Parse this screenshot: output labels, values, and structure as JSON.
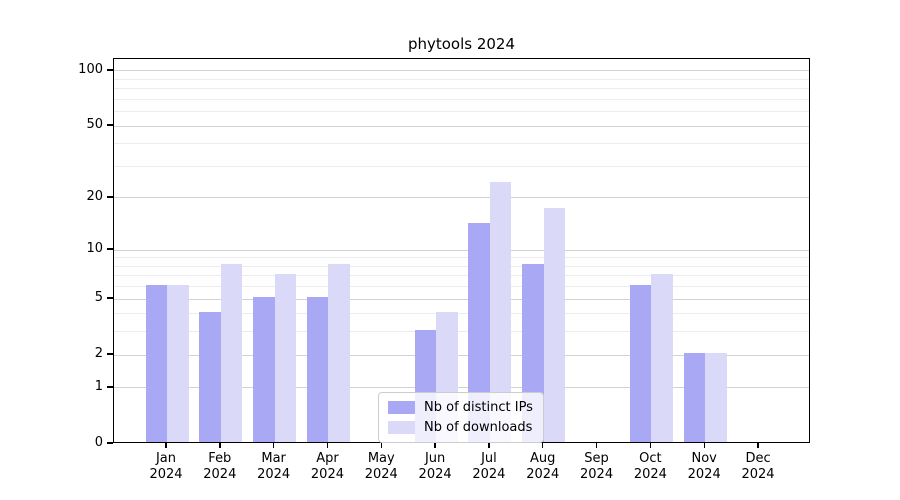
{
  "title": "phytools 2024",
  "legend": {
    "items": [
      {
        "label": "Nb of distinct IPs",
        "key": "ips"
      },
      {
        "label": "Nb of downloads",
        "key": "downloads"
      }
    ]
  },
  "colors": {
    "ips": "#a8a8f5",
    "downloads": "#dadaf8",
    "grid_major": "#d2d2d2",
    "grid_minor": "#ececec",
    "spine": "#000000",
    "legend_border": "#cccccc"
  },
  "y_axis": {
    "scale": "log1p",
    "ticks": [
      0,
      1,
      2,
      5,
      10,
      20,
      50,
      100
    ],
    "tick_labels": [
      "0",
      "1",
      "2",
      "5",
      "10",
      "20",
      "50",
      "100"
    ],
    "minor_ticks": [
      3,
      4,
      6,
      7,
      8,
      9,
      30,
      40,
      60,
      70,
      80,
      90
    ],
    "ymax": 116
  },
  "x_axis": {
    "months": [
      "Jan",
      "Feb",
      "Mar",
      "Apr",
      "May",
      "Jun",
      "Jul",
      "Aug",
      "Sep",
      "Oct",
      "Nov",
      "Dec"
    ],
    "year": "2024"
  },
  "chart_data": {
    "type": "bar",
    "categories": [
      "Jan 2024",
      "Feb 2024",
      "Mar 2024",
      "Apr 2024",
      "May 2024",
      "Jun 2024",
      "Jul 2024",
      "Aug 2024",
      "Sep 2024",
      "Oct 2024",
      "Nov 2024",
      "Dec 2024"
    ],
    "series": [
      {
        "name": "Nb of distinct IPs",
        "values": [
          6,
          4,
          5,
          5,
          0,
          3,
          14,
          8,
          0,
          6,
          2,
          0
        ]
      },
      {
        "name": "Nb of downloads",
        "values": [
          6,
          8,
          7,
          8,
          0,
          4,
          24,
          17,
          0,
          7,
          2,
          0
        ]
      }
    ],
    "title": "phytools 2024",
    "xlabel": "",
    "ylabel": "",
    "yscale": "log1p",
    "yticks": [
      0,
      1,
      2,
      5,
      10,
      20,
      50,
      100
    ],
    "ylim": [
      0,
      116
    ],
    "grid": "both",
    "legend_position": "lower center"
  }
}
